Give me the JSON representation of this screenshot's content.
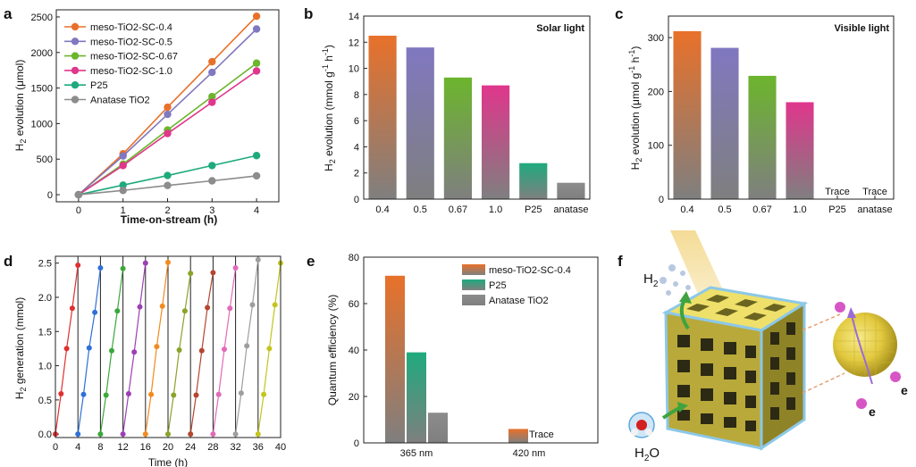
{
  "panels": {
    "a": "a",
    "b": "b",
    "c": "c",
    "d": "d",
    "e": "e",
    "f": "f"
  },
  "colors": {
    "sc04": "#e8712a",
    "sc05": "#8078c0",
    "sc067": "#6cb52d",
    "sc10": "#e0368c",
    "p25": "#1faa7e",
    "anatase": "#8c8c8c",
    "bar_bottom": "#7f7f7f"
  },
  "chart_data": [
    {
      "panel": "a",
      "type": "line",
      "xlabel": "Time-on-stream (h)",
      "ylabel": "H2 evolution (μmol)",
      "xlim": [
        -0.5,
        4.5
      ],
      "ylim": [
        -100,
        2600
      ],
      "xticks": [
        0,
        1,
        2,
        3,
        4
      ],
      "yticks": [
        0,
        500,
        1000,
        1500,
        2000,
        2500
      ],
      "legend_position": "top-left",
      "x": [
        0,
        1,
        2,
        3,
        4
      ],
      "series": [
        {
          "name": "meso-TiO2-SC-0.4",
          "color_key": "sc04",
          "values": [
            0,
            575,
            1230,
            1870,
            2510
          ]
        },
        {
          "name": "meso-TiO2-SC-0.5",
          "color_key": "sc05",
          "values": [
            0,
            545,
            1130,
            1720,
            2330
          ]
        },
        {
          "name": "meso-TiO2-SC-0.67",
          "color_key": "sc067",
          "values": [
            0,
            430,
            910,
            1380,
            1850
          ]
        },
        {
          "name": "meso-TiO2-SC-1.0",
          "color_key": "sc10",
          "values": [
            0,
            410,
            860,
            1300,
            1740
          ]
        },
        {
          "name": "P25",
          "color_key": "p25",
          "values": [
            0,
            135,
            270,
            410,
            550
          ]
        },
        {
          "name": "Anatase TiO2",
          "color_key": "anatase",
          "values": [
            0,
            60,
            130,
            195,
            265
          ]
        }
      ]
    },
    {
      "panel": "b",
      "type": "bar",
      "annotation": "Solar light",
      "ylabel": "H2 evolution (mmol g-1 h-1)",
      "ylim": [
        0,
        14
      ],
      "yticks": [
        0,
        2,
        4,
        6,
        8,
        10,
        12,
        14
      ],
      "categories": [
        "0.4",
        "0.5",
        "0.67",
        "1.0",
        "P25",
        "anatase"
      ],
      "values": [
        12.5,
        11.6,
        9.3,
        8.7,
        2.75,
        1.25
      ],
      "color_keys": [
        "sc04",
        "sc05",
        "sc067",
        "sc10",
        "p25",
        "anatase"
      ]
    },
    {
      "panel": "c",
      "type": "bar",
      "annotation": "Visible light",
      "ylabel": "H2 evolution (μmol g-1 h-1)",
      "ylim": [
        0,
        340
      ],
      "yticks": [
        0,
        100,
        200,
        300
      ],
      "categories": [
        "0.4",
        "0.5",
        "0.67",
        "1.0",
        "P25",
        "anatase"
      ],
      "values": [
        312,
        281,
        229,
        180,
        0,
        0
      ],
      "value_labels": [
        "",
        "",
        "",
        "",
        "Trace",
        "Trace"
      ],
      "color_keys": [
        "sc04",
        "sc05",
        "sc067",
        "sc10",
        "p25",
        "anatase"
      ]
    },
    {
      "panel": "d",
      "type": "line",
      "xlabel": "Time (h)",
      "ylabel": "H2 generation (mmol)",
      "xlim": [
        0,
        40
      ],
      "ylim": [
        -0.05,
        2.6
      ],
      "xticks": [
        0,
        4,
        8,
        12,
        16,
        20,
        24,
        28,
        32,
        36,
        40
      ],
      "yticks": [
        0.0,
        0.5,
        1.0,
        1.5,
        2.0,
        2.5
      ],
      "cycle_boundaries": [
        4,
        8,
        12,
        16,
        20,
        24,
        28,
        32,
        36
      ],
      "cycles": [
        {
          "x": [
            0,
            1,
            2,
            3,
            4
          ],
          "values": [
            0,
            0.59,
            1.25,
            1.84,
            2.47
          ],
          "color": "#e02f2f"
        },
        {
          "x": [
            4,
            5,
            6,
            7,
            8
          ],
          "values": [
            0,
            0.58,
            1.26,
            1.78,
            2.43
          ],
          "color": "#2f6fd6"
        },
        {
          "x": [
            8,
            9,
            10,
            11,
            12
          ],
          "values": [
            0,
            0.57,
            1.22,
            1.8,
            2.42
          ],
          "color": "#3aa83a"
        },
        {
          "x": [
            12,
            13,
            14,
            15,
            16
          ],
          "values": [
            0,
            0.59,
            1.2,
            1.86,
            2.5
          ],
          "color": "#9c3fb5"
        },
        {
          "x": [
            16,
            17,
            18,
            19,
            20
          ],
          "values": [
            0,
            0.58,
            1.28,
            1.87,
            2.51
          ],
          "color": "#f28a1e"
        },
        {
          "x": [
            20,
            21,
            22,
            23,
            24
          ],
          "values": [
            0,
            0.57,
            1.23,
            1.8,
            2.35
          ],
          "color": "#8aa32a"
        },
        {
          "x": [
            24,
            25,
            26,
            27,
            28
          ],
          "values": [
            0,
            0.57,
            1.22,
            1.85,
            2.36
          ],
          "color": "#b5452e"
        },
        {
          "x": [
            28,
            29,
            30,
            31,
            32
          ],
          "values": [
            0,
            0.58,
            1.24,
            1.84,
            2.43
          ],
          "color": "#e26ab8"
        },
        {
          "x": [
            32,
            33,
            34,
            35,
            36
          ],
          "values": [
            0,
            0.6,
            1.29,
            1.89,
            2.55
          ],
          "color": "#9e9e9e"
        },
        {
          "x": [
            36,
            37,
            38,
            39,
            40
          ],
          "values": [
            0,
            0.58,
            1.25,
            1.89,
            2.5
          ],
          "color": "#c4c41f"
        }
      ]
    },
    {
      "panel": "e",
      "type": "bar",
      "ylabel": "Quantum efficiency (%)",
      "ylim": [
        0,
        80
      ],
      "yticks": [
        0,
        20,
        40,
        60,
        80
      ],
      "categories": [
        "365 nm",
        "420 nm"
      ],
      "legend_position": "top-right",
      "series": [
        {
          "name": "meso-TiO2-SC-0.4",
          "color_key": "sc04",
          "values": [
            72,
            6
          ]
        },
        {
          "name": "P25",
          "color_key": "p25",
          "values": [
            39,
            0
          ]
        },
        {
          "name": "Anatase TiO2",
          "color_key": "anatase",
          "values": [
            13,
            0
          ]
        }
      ],
      "trace_label": "Trace"
    }
  ],
  "schematic": {
    "h2_label": "H",
    "h2_sub": "2",
    "h2o_label": "H",
    "h2o_sub": "2",
    "h2o_tail": "O",
    "electron_labels": [
      "e",
      "e"
    ]
  }
}
